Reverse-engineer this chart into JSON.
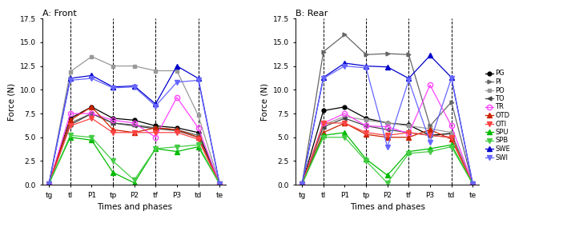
{
  "x_labels": [
    "tg",
    "tl",
    "P1",
    "tp",
    "P2",
    "tf",
    "P3",
    "td",
    "te"
  ],
  "x_positions": [
    0,
    1,
    2,
    3,
    4,
    5,
    6,
    7,
    8
  ],
  "dashed_lines": [
    1,
    3,
    5,
    7
  ],
  "ylim": [
    0,
    17.5
  ],
  "yticks": [
    0.0,
    2.5,
    5.0,
    7.5,
    10.0,
    12.5,
    15.0,
    17.5
  ],
  "xlabel": "Times and phases",
  "ylabel": "Force (N)",
  "title_A": "A: Front",
  "title_B": "B: Rear",
  "series": {
    "PG": {
      "color": "#000000",
      "marker": "o",
      "marker_size": 3.5,
      "linestyle": "-",
      "front": [
        0.1,
        7.0,
        8.2,
        7.0,
        6.8,
        6.2,
        6.0,
        5.5,
        0.1
      ],
      "rear": [
        0.1,
        7.8,
        8.2,
        7.0,
        6.5,
        6.3,
        5.2,
        5.4,
        0.1
      ]
    },
    "PI": {
      "color": "#666666",
      "marker": ">",
      "marker_size": 3.5,
      "linestyle": "-",
      "front": [
        0.1,
        6.5,
        7.5,
        6.5,
        6.3,
        6.0,
        5.8,
        5.2,
        0.1
      ],
      "rear": [
        0.1,
        14.0,
        15.8,
        13.7,
        13.8,
        13.7,
        6.2,
        8.7,
        0.1
      ]
    },
    "PO": {
      "color": "#999999",
      "marker": "s",
      "marker_size": 3.5,
      "linestyle": "-",
      "front": [
        0.1,
        11.9,
        13.5,
        12.5,
        12.5,
        12.0,
        12.0,
        7.3,
        0.1
      ],
      "rear": [
        0.1,
        6.3,
        7.2,
        6.8,
        6.5,
        6.2,
        5.9,
        5.5,
        0.1
      ]
    },
    "TO": {
      "color": "#444444",
      "marker": "<",
      "marker_size": 3.5,
      "linestyle": "-",
      "front": [
        0.1,
        6.3,
        7.5,
        6.5,
        6.2,
        5.9,
        5.7,
        5.0,
        0.1
      ],
      "rear": [
        0.1,
        6.1,
        7.0,
        6.2,
        5.8,
        5.5,
        5.2,
        5.0,
        0.1
      ]
    },
    "TR": {
      "color": "#ff44ff",
      "marker": "o",
      "marker_size": 4.5,
      "linestyle": "-",
      "front": [
        0.1,
        7.5,
        7.5,
        6.8,
        6.5,
        5.0,
        9.2,
        6.0,
        0.1
      ],
      "rear": [
        0.1,
        6.5,
        7.5,
        6.2,
        6.1,
        5.4,
        10.5,
        6.2,
        0.1
      ]
    },
    "OTD": {
      "color": "#cc2200",
      "marker": "^",
      "marker_size": 4.0,
      "linestyle": "-",
      "front": [
        0.1,
        6.8,
        8.2,
        5.8,
        5.5,
        6.0,
        5.8,
        5.0,
        0.1
      ],
      "rear": [
        0.1,
        5.5,
        6.5,
        5.3,
        5.0,
        5.0,
        5.8,
        4.8,
        0.1
      ]
    },
    "OTI": {
      "color": "#ff4444",
      "marker": "v",
      "marker_size": 4.0,
      "linestyle": "-",
      "front": [
        0.1,
        6.2,
        7.0,
        5.5,
        5.5,
        5.5,
        5.5,
        4.8,
        0.1
      ],
      "rear": [
        0.1,
        6.5,
        6.5,
        5.5,
        5.2,
        5.5,
        5.2,
        5.0,
        0.1
      ]
    },
    "SPU": {
      "color": "#00bb00",
      "marker": "^",
      "marker_size": 4.0,
      "linestyle": "-",
      "front": [
        0.1,
        5.0,
        4.7,
        1.3,
        0.2,
        3.8,
        3.5,
        4.0,
        0.1
      ],
      "rear": [
        0.1,
        5.2,
        5.5,
        2.7,
        1.0,
        3.5,
        3.8,
        4.2,
        0.1
      ]
    },
    "SPB": {
      "color": "#44cc44",
      "marker": "v",
      "marker_size": 4.0,
      "linestyle": "-",
      "front": [
        0.1,
        5.2,
        5.0,
        2.5,
        0.5,
        3.8,
        4.0,
        4.2,
        0.1
      ],
      "rear": [
        0.1,
        5.0,
        5.0,
        2.5,
        0.2,
        3.3,
        3.5,
        4.0,
        0.1
      ]
    },
    "SWE": {
      "color": "#0000cc",
      "marker": "^",
      "marker_size": 4.0,
      "linestyle": "-",
      "front": [
        0.1,
        11.2,
        11.5,
        10.3,
        10.4,
        8.5,
        12.5,
        11.2,
        0.1
      ],
      "rear": [
        0.1,
        11.3,
        12.8,
        12.5,
        12.4,
        11.2,
        13.6,
        11.3,
        0.1
      ]
    },
    "SWI": {
      "color": "#6666ff",
      "marker": "v",
      "marker_size": 4.0,
      "linestyle": "-",
      "front": [
        0.1,
        11.0,
        11.2,
        10.2,
        10.3,
        8.3,
        10.8,
        11.0,
        0.1
      ],
      "rear": [
        0.1,
        11.2,
        12.5,
        12.3,
        4.0,
        11.0,
        4.5,
        11.2,
        0.1
      ]
    }
  },
  "legend_order": [
    "PG",
    "PI",
    "PO",
    "TO",
    "TR",
    "OTD",
    "OTI",
    "SPU",
    "SPB",
    "SWE",
    "SWI"
  ]
}
